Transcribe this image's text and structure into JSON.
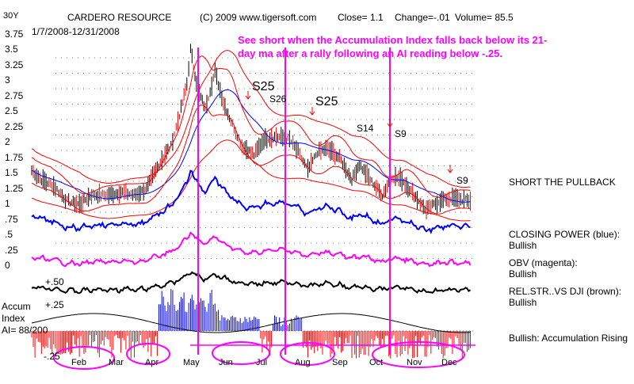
{
  "header": {
    "corner": "30Y",
    "title": "CARDERO RESOURCE",
    "copyright": "(C) 2009 www.tigersoft.com",
    "close": "Close=  1.1",
    "change": "Change=-.01",
    "volume": "Volume= 85.5",
    "date_range": "1/7/2008-12/31/2008"
  },
  "annotation": "See short when the Accumulation Index falls back below its 21-day ma after a rally following an AI reading below -.25.",
  "signals": [
    "S25",
    "S26",
    "S25",
    "S14",
    "S9",
    "S9"
  ],
  "right_panel": {
    "short_pullback": "SHORT THE PULLBACK",
    "closing_power": "CLOSING POWER (blue):",
    "closing_power_val": "Bullish",
    "obv": "OBV (magenta):",
    "obv_val": "Bullish",
    "relstr": "REL.STR..VS DJI (brown):",
    "relstr_val": "Bullish",
    "accum": "Bullish: Accumulation Rising"
  },
  "accum_panel": {
    "title": "Accum",
    "subtitle": "Index",
    "ai": "AI= 88/200",
    "plus50": "+.50",
    "plus25": "+.25",
    "minus25": "-.25"
  },
  "colors": {
    "price": "#000000",
    "bands": "#ff0000",
    "ma": "#0000ff",
    "closing_power": "#0000ff",
    "obv": "#ff00ff",
    "relstr": "#000000",
    "accum_pos": "#0000ff",
    "accum_neg": "#ff0000",
    "signal_lines": "#ff00ff",
    "circles": "#ff00ff",
    "annotation": "#ff00ff"
  },
  "chart_data": {
    "type": "line",
    "title": "CARDERO RESOURCE",
    "y_ticks": [
      "3.75",
      "3.5",
      "3.25",
      "3",
      "2.75",
      "2.5",
      "2.25",
      "2",
      "1.75",
      "1.5",
      "1.25",
      "1",
      ".75",
      ".5",
      ".25",
      "0"
    ],
    "ylim": [
      0,
      3.75
    ],
    "x_months": [
      "Feb",
      "Mar",
      "Apr",
      "May",
      "Jun",
      "Jul",
      "Aug",
      "Sep",
      "Oct",
      "Nov",
      "Dec"
    ],
    "price_points": [
      [
        "1/7",
        1.6
      ],
      [
        "1/15",
        1.45
      ],
      [
        "1/25",
        1.35
      ],
      [
        "2/5",
        1.1
      ],
      [
        "2/15",
        1.05
      ],
      [
        "2/25",
        1.2
      ],
      [
        "3/10",
        1.2
      ],
      [
        "3/20",
        1.25
      ],
      [
        "3/31",
        1.2
      ],
      [
        "4/10",
        1.3
      ],
      [
        "4/20",
        1.7
      ],
      [
        "4/30",
        2.0
      ],
      [
        "5/7",
        2.5
      ],
      [
        "5/13",
        3.0
      ],
      [
        "5/16",
        3.55
      ],
      [
        "5/22",
        2.9
      ],
      [
        "5/28",
        2.6
      ],
      [
        "6/5",
        3.2
      ],
      [
        "6/12",
        2.7
      ],
      [
        "6/18",
        2.4
      ],
      [
        "6/27",
        2.0
      ],
      [
        "7/7",
        1.85
      ],
      [
        "7/15",
        2.1
      ],
      [
        "7/25",
        2.15
      ],
      [
        "8/5",
        2.1
      ],
      [
        "8/12",
        1.9
      ],
      [
        "8/20",
        1.6
      ],
      [
        "8/28",
        1.9
      ],
      [
        "9/5",
        1.95
      ],
      [
        "9/15",
        1.8
      ],
      [
        "9/25",
        1.45
      ],
      [
        "10/1",
        1.7
      ],
      [
        "10/10",
        1.45
      ],
      [
        "10/20",
        1.2
      ],
      [
        "10/28",
        1.5
      ],
      [
        "11/5",
        1.45
      ],
      [
        "11/15",
        1.2
      ],
      [
        "11/25",
        0.95
      ],
      [
        "12/5",
        1.1
      ],
      [
        "12/15",
        1.15
      ],
      [
        "12/31",
        1.1
      ]
    ],
    "series": [
      {
        "name": "CLOSING POWER (blue)"
      },
      {
        "name": "OBV (magenta)"
      },
      {
        "name": "REL.STR..VS DJI (brown)"
      },
      {
        "name": "Accum Index"
      }
    ]
  }
}
